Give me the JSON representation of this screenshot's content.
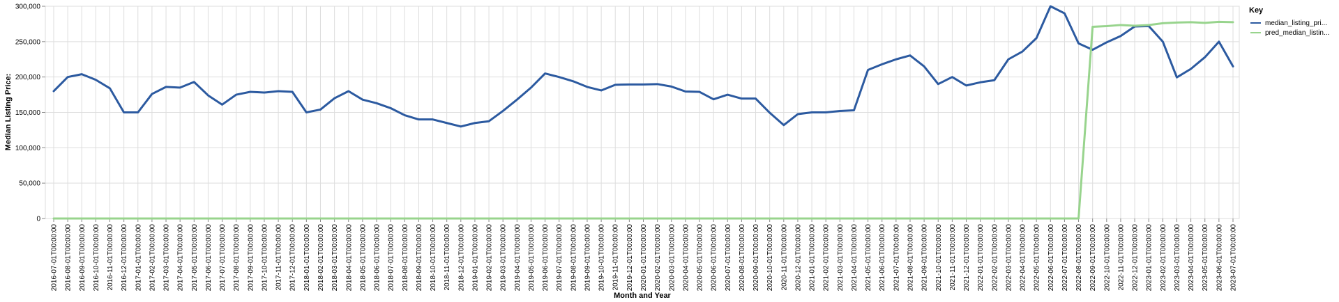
{
  "chart_data": {
    "type": "line",
    "xlabel": "Month and Year",
    "ylabel": "Median Listing Price:",
    "ylim": [
      0,
      300000
    ],
    "yticks": [
      "0",
      "50,000",
      "100,000",
      "150,000",
      "200,000",
      "250,000",
      "300,000"
    ],
    "grid": true,
    "legend": {
      "title": "Key",
      "placement": "top-right"
    },
    "x": [
      "2016-07-01T00:00:00",
      "2016-08-01T00:00:00",
      "2016-09-01T00:00:00",
      "2016-10-01T00:00:00",
      "2016-11-01T00:00:00",
      "2016-12-01T00:00:00",
      "2017-01-01T00:00:00",
      "2017-02-01T00:00:00",
      "2017-03-01T00:00:00",
      "2017-04-01T00:00:00",
      "2017-05-01T00:00:00",
      "2017-06-01T00:00:00",
      "2017-07-01T00:00:00",
      "2017-08-01T00:00:00",
      "2017-09-01T00:00:00",
      "2017-10-01T00:00:00",
      "2017-11-01T00:00:00",
      "2017-12-01T00:00:00",
      "2018-01-01T00:00:00",
      "2018-02-01T00:00:00",
      "2018-03-01T00:00:00",
      "2018-04-01T00:00:00",
      "2018-05-01T00:00:00",
      "2018-06-01T00:00:00",
      "2018-07-01T00:00:00",
      "2018-08-01T00:00:00",
      "2018-09-01T00:00:00",
      "2018-10-01T00:00:00",
      "2018-11-01T00:00:00",
      "2018-12-01T00:00:00",
      "2019-01-01T00:00:00",
      "2019-02-01T00:00:00",
      "2019-03-01T00:00:00",
      "2019-04-01T00:00:00",
      "2019-05-01T00:00:00",
      "2019-06-01T00:00:00",
      "2019-07-01T00:00:00",
      "2019-08-01T00:00:00",
      "2019-09-01T00:00:00",
      "2019-10-01T00:00:00",
      "2019-11-01T00:00:00",
      "2019-12-01T00:00:00",
      "2020-01-01T00:00:00",
      "2020-02-01T00:00:00",
      "2020-03-01T00:00:00",
      "2020-04-01T00:00:00",
      "2020-05-01T00:00:00",
      "2020-06-01T00:00:00",
      "2020-07-01T00:00:00",
      "2020-08-01T00:00:00",
      "2020-09-01T00:00:00",
      "2020-10-01T00:00:00",
      "2020-11-01T00:00:00",
      "2020-12-01T00:00:00",
      "2021-01-01T00:00:00",
      "2021-02-01T00:00:00",
      "2021-03-01T00:00:00",
      "2021-04-01T00:00:00",
      "2021-05-01T00:00:00",
      "2021-06-01T00:00:00",
      "2021-07-01T00:00:00",
      "2021-08-01T00:00:00",
      "2021-09-01T00:00:00",
      "2021-10-01T00:00:00",
      "2021-11-01T00:00:00",
      "2021-12-01T00:00:00",
      "2022-01-01T00:00:00",
      "2022-02-01T00:00:00",
      "2022-03-01T00:00:00",
      "2022-04-01T00:00:00",
      "2022-05-01T00:00:00",
      "2022-06-01T00:00:00",
      "2022-07-01T00:00:00",
      "2022-08-01T00:00:00",
      "2022-09-01T00:00:00",
      "2022-10-01T00:00:00",
      "2022-11-01T00:00:00",
      "2022-12-01T00:00:00",
      "2023-01-01T00:00:00",
      "2023-02-01T00:00:00",
      "2023-03-01T00:00:00",
      "2023-04-01T00:00:00",
      "2023-05-01T00:00:00",
      "2023-06-01T00:00:00",
      "2023-07-01T00:00:00"
    ],
    "series": [
      {
        "name": "median_listing_pri...",
        "color": "#2c5aa0",
        "values": [
          180000,
          200000,
          204000,
          196000,
          184000,
          150000,
          150000,
          176000,
          186000,
          185000,
          193000,
          174000,
          161000,
          175000,
          179000,
          178000,
          180000,
          179000,
          150000,
          154000,
          170000,
          180000,
          168000,
          163000,
          156000,
          146000,
          140000,
          140000,
          135000,
          130000,
          135000,
          137500,
          152000,
          168000,
          185000,
          205000,
          200000,
          194000,
          186000,
          181000,
          189000,
          189500,
          189500,
          190000,
          186500,
          179500,
          179000,
          168500,
          175000,
          169500,
          169500,
          149500,
          132000,
          147500,
          150000,
          150000,
          152000,
          153000,
          210000,
          218000,
          225000,
          230500,
          215000,
          190000,
          200000,
          188000,
          192500,
          195500,
          225000,
          236000,
          255000,
          300000,
          290000,
          247500,
          238500,
          249000,
          258000,
          271500,
          272000,
          250000,
          199500,
          211500,
          228000,
          250000,
          215000
        ]
      },
      {
        "name": "pred_median_listin...",
        "color": "#98d48d",
        "values": [
          0,
          0,
          0,
          0,
          0,
          0,
          0,
          0,
          0,
          0,
          0,
          0,
          0,
          0,
          0,
          0,
          0,
          0,
          0,
          0,
          0,
          0,
          0,
          0,
          0,
          0,
          0,
          0,
          0,
          0,
          0,
          0,
          0,
          0,
          0,
          0,
          0,
          0,
          0,
          0,
          0,
          0,
          0,
          0,
          0,
          0,
          0,
          0,
          0,
          0,
          0,
          0,
          0,
          0,
          0,
          0,
          0,
          0,
          0,
          0,
          0,
          0,
          0,
          0,
          0,
          0,
          0,
          0,
          0,
          0,
          0,
          0,
          0,
          0,
          271000,
          272000,
          273500,
          272500,
          273500,
          276000,
          277000,
          277500,
          276500,
          278000,
          277500
        ]
      }
    ]
  }
}
